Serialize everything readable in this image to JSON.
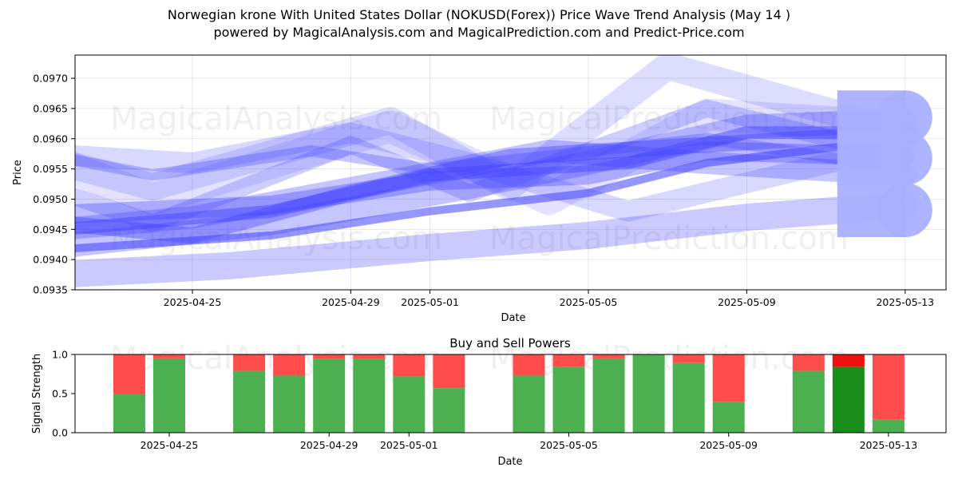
{
  "page": {
    "title": "Norwegian krone With United States Dollar (NOKUSD(Forex)) Price Wave Trend Analysis (May 14 )",
    "subtitle": "powered by MagicalAnalysis.com and MagicalPrediction.com and Predict-Price.com",
    "watermarks": [
      "MagicalAnalysis.com",
      "MagicalPrediction.com"
    ]
  },
  "chart_data": [
    {
      "type": "area",
      "title": "",
      "xlabel": "Date",
      "ylabel": "Price",
      "xlim": [
        "2025-04-20",
        "2025-05-13"
      ],
      "ylim": [
        0.0935,
        0.0974
      ],
      "yticks": [
        0.0935,
        0.094,
        0.0945,
        0.095,
        0.0955,
        0.096,
        0.0965,
        0.097
      ],
      "ytick_labels": [
        "0.0935",
        "0.0940",
        "0.0945",
        "0.0950",
        "0.0955",
        "0.0960",
        "0.0965",
        "0.0970"
      ],
      "xticks": [
        "2025-04-25",
        "2025-04-29",
        "2025-05-01",
        "2025-05-05",
        "2025-05-09",
        "2025-05-13"
      ],
      "grid": true,
      "color": "#4040ff",
      "series": [
        {
          "dates": [
            "2025-04-20",
            "2025-04-27",
            "2025-05-01",
            "2025-05-05",
            "2025-05-08",
            "2025-05-13"
          ],
          "values": [
            0.0941,
            0.0944,
            0.0948,
            0.0951,
            0.0956,
            0.096
          ]
        },
        {
          "dates": [
            "2025-04-20",
            "2025-04-27",
            "2025-05-01",
            "2025-05-06",
            "2025-05-09",
            "2025-05-13"
          ],
          "values": [
            0.0944,
            0.0948,
            0.0954,
            0.0956,
            0.0961,
            0.0961
          ]
        },
        {
          "dates": [
            "2025-04-20",
            "2025-04-27",
            "2025-05-01",
            "2025-05-05",
            "2025-05-08",
            "2025-05-13"
          ],
          "values": [
            0.0947,
            0.0949,
            0.0953,
            0.0954,
            0.0958,
            0.0957
          ]
        },
        {
          "dates": [
            "2025-04-20",
            "2025-04-27",
            "2025-05-02",
            "2025-05-05",
            "2025-05-09",
            "2025-05-13"
          ],
          "values": [
            0.0941,
            0.0946,
            0.0952,
            0.0956,
            0.0962,
            0.0963
          ]
        },
        {
          "dates": [
            "2025-04-20",
            "2025-04-25",
            "2025-04-29",
            "2025-05-03",
            "2025-05-08",
            "2025-05-13"
          ],
          "values": [
            0.0947,
            0.0944,
            0.0951,
            0.0957,
            0.0959,
            0.0961
          ]
        },
        {
          "dates": [
            "2025-04-20",
            "2025-04-24",
            "2025-04-30",
            "2025-05-03",
            "2025-05-07",
            "2025-05-13"
          ],
          "values": [
            0.0959,
            0.0952,
            0.0963,
            0.0952,
            0.0972,
            0.0961
          ]
        },
        {
          "dates": [
            "2025-04-20",
            "2025-04-25",
            "2025-04-29",
            "2025-05-02",
            "2025-05-06",
            "2025-05-13"
          ],
          "values": [
            0.0958,
            0.0956,
            0.0961,
            0.0956,
            0.0948,
            0.0959
          ]
        },
        {
          "dates": [
            "2025-04-20",
            "2025-04-24",
            "2025-04-28",
            "2025-05-01",
            "2025-05-08",
            "2025-05-13"
          ],
          "values": [
            0.0959,
            0.0954,
            0.0958,
            0.0955,
            0.096,
            0.0955
          ]
        },
        {
          "dates": [
            "2025-04-20",
            "2025-04-24",
            "2025-04-30",
            "2025-05-04",
            "2025-05-08",
            "2025-05-13"
          ],
          "values": [
            0.096,
            0.095,
            0.0962,
            0.095,
            0.0964,
            0.0962
          ]
        },
        {
          "dates": [
            "2025-04-20",
            "2025-04-24",
            "2025-04-29",
            "2025-05-02",
            "2025-05-08",
            "2025-05-13"
          ],
          "values": [
            0.0955,
            0.0946,
            0.0959,
            0.0951,
            0.0965,
            0.0957
          ]
        },
        {
          "dates": [
            "2025-04-20",
            "2025-04-26",
            "2025-05-01",
            "2025-05-05",
            "2025-05-09",
            "2025-05-13"
          ],
          "values": [
            0.0937,
            0.0939,
            0.0942,
            0.0944,
            0.0947,
            0.0949
          ]
        },
        {
          "dates": [
            "2025-04-20",
            "2025-04-25",
            "2025-04-30",
            "2025-05-04",
            "2025-05-08",
            "2025-05-13"
          ],
          "values": [
            0.0944,
            0.0947,
            0.0953,
            0.0958,
            0.0956,
            0.0954
          ]
        }
      ],
      "end_markers": [
        {
          "date": "2025-05-13",
          "value": 0.09635
        },
        {
          "date": "2025-05-13",
          "value": 0.09568
        },
        {
          "date": "2025-05-13",
          "value": 0.09482
        }
      ]
    },
    {
      "type": "bar",
      "title": "Buy and Sell Powers",
      "xlabel": "Date",
      "ylabel": "Signal Strength",
      "ylim": [
        0,
        1.0
      ],
      "yticks": [
        0.0,
        0.5,
        1.0
      ],
      "ytick_labels": [
        "0.0",
        "0.5",
        "1.0"
      ],
      "xticks": [
        "2025-04-25",
        "2025-04-29",
        "2025-05-01",
        "2025-05-05",
        "2025-05-09",
        "2025-05-13"
      ],
      "series": [
        {
          "name": "Buy",
          "color": "#4caf50"
        },
        {
          "name": "Sell",
          "color": "#ff4c4c"
        }
      ],
      "highlight_colors": {
        "buy": "#1a8c1a",
        "sell": "#ee1111"
      },
      "bars": [
        {
          "date": "2025-04-24",
          "buy": 0.5
        },
        {
          "date": "2025-04-25",
          "buy": 0.95
        },
        {
          "date": "2025-04-27",
          "buy": 0.79
        },
        {
          "date": "2025-04-28",
          "buy": 0.73
        },
        {
          "date": "2025-04-29",
          "buy": 0.94
        },
        {
          "date": "2025-04-30",
          "buy": 0.94
        },
        {
          "date": "2025-05-01",
          "buy": 0.72
        },
        {
          "date": "2025-05-02",
          "buy": 0.57
        },
        {
          "date": "2025-05-04",
          "buy": 0.73
        },
        {
          "date": "2025-05-05",
          "buy": 0.84
        },
        {
          "date": "2025-05-06",
          "buy": 0.95
        },
        {
          "date": "2025-05-07",
          "buy": 1.0
        },
        {
          "date": "2025-05-08",
          "buy": 0.89
        },
        {
          "date": "2025-05-09",
          "buy": 0.39
        },
        {
          "date": "2025-05-11",
          "buy": 0.79
        },
        {
          "date": "2025-05-12",
          "buy": 0.84,
          "highlight": true
        },
        {
          "date": "2025-05-13",
          "buy": 0.17
        }
      ]
    }
  ]
}
